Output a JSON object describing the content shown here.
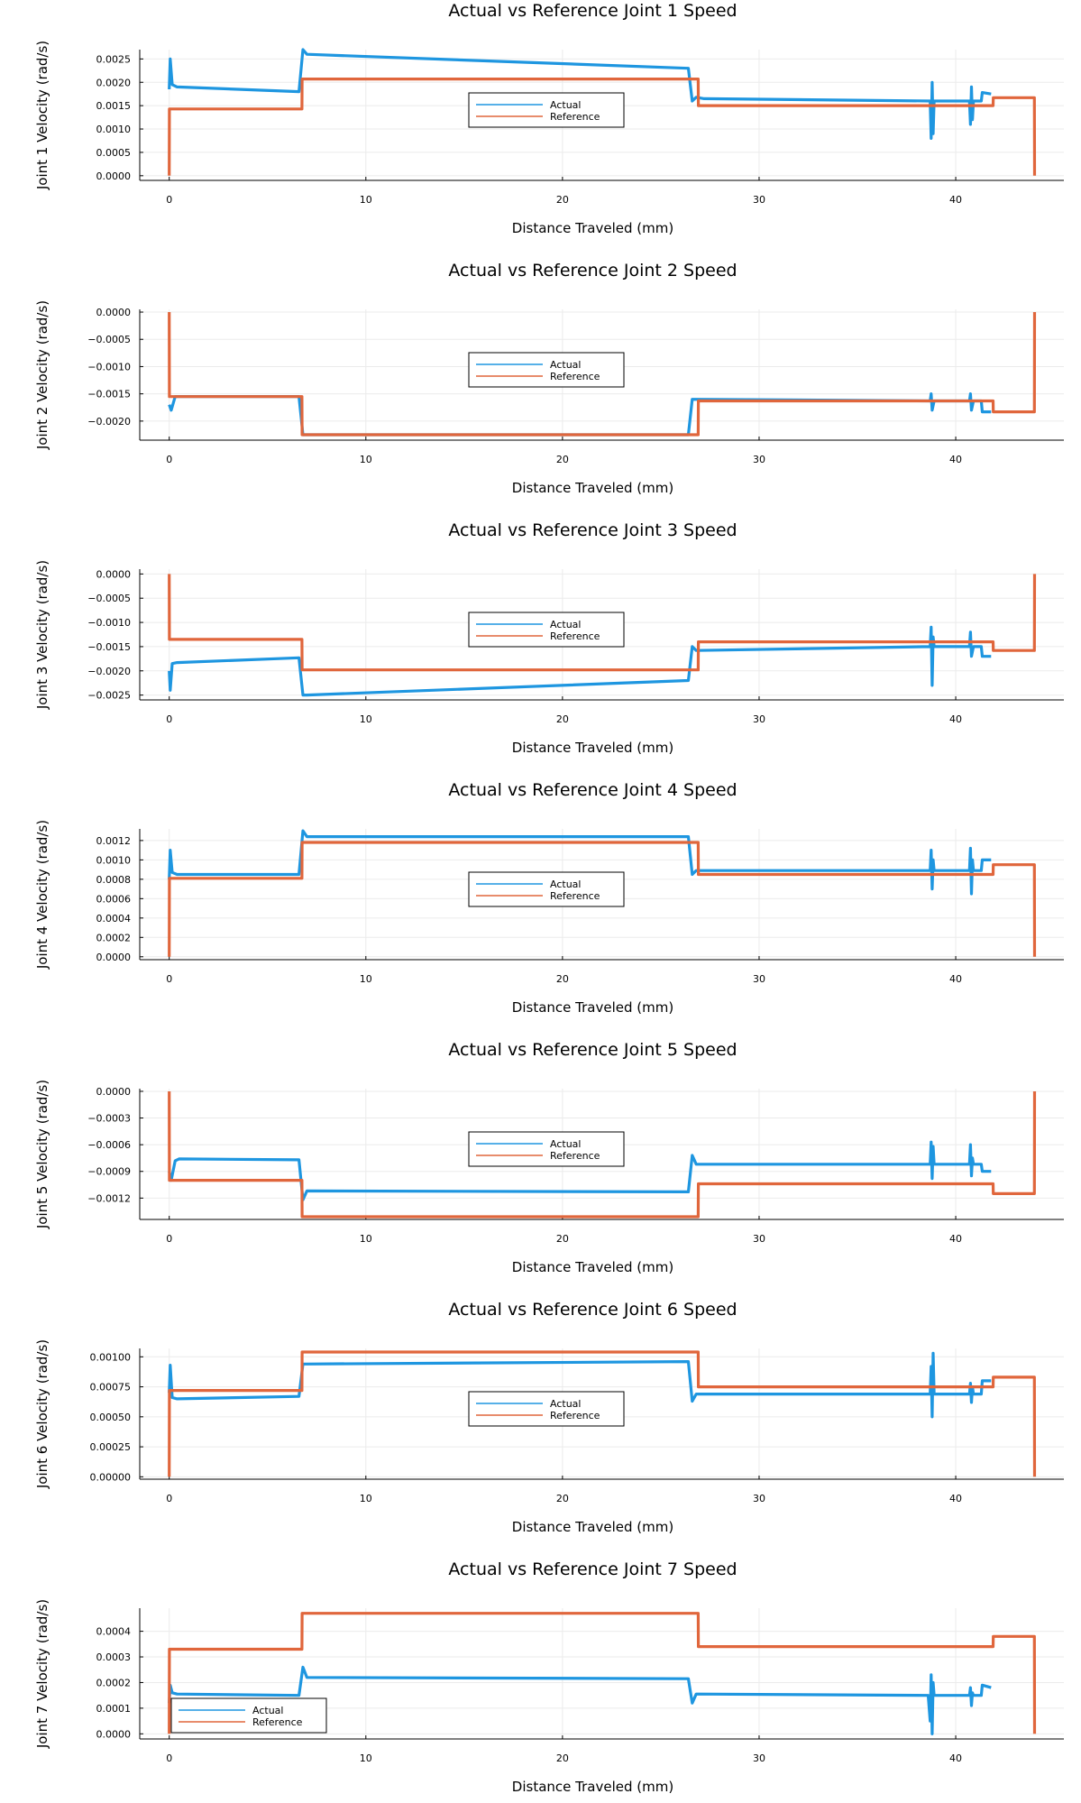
{
  "colors": {
    "actual": "#1e96e0",
    "reference": "#e0663c",
    "axis": "#000000",
    "grid": "#ebebeb"
  },
  "chart_data": [
    {
      "type": "line",
      "title": "Actual vs Reference Joint 1 Speed",
      "xlabel": "Distance Traveled (mm)",
      "ylabel": "Joint 1 Velocity (rad/s)",
      "xlim": [
        -1.5,
        45.5
      ],
      "ylim": [
        -0.0001,
        0.0027
      ],
      "xticks": [
        0,
        10,
        20,
        30,
        40
      ],
      "xtick_labels": [
        "0",
        "10",
        "20",
        "30",
        "40"
      ],
      "yticks": [
        0.0,
        0.0005,
        0.001,
        0.0015,
        0.002,
        0.0025
      ],
      "ytick_labels": [
        "0.0000",
        "0.0005",
        "0.0010",
        "0.0015",
        "0.0020",
        "0.0025"
      ],
      "legend_position": "center",
      "series": [
        {
          "name": "Actual",
          "x": [
            0,
            0.05,
            0.15,
            0.4,
            6.6,
            6.8,
            7.0,
            26.4,
            26.6,
            26.8,
            27.2,
            38.7,
            38.75,
            38.8,
            38.85,
            38.9,
            40.7,
            40.75,
            40.8,
            40.85,
            40.9,
            41.3,
            41.35,
            41.8
          ],
          "y": [
            0.00185,
            0.0025,
            0.00195,
            0.0019,
            0.0018,
            0.0027,
            0.0026,
            0.0023,
            0.0016,
            0.00168,
            0.00165,
            0.0016,
            0.0008,
            0.002,
            0.0009,
            0.0016,
            0.0016,
            0.0011,
            0.0019,
            0.0012,
            0.0016,
            0.0016,
            0.00178,
            0.00175
          ]
        },
        {
          "name": "Reference",
          "x": [
            0,
            0.01,
            6.75,
            6.76,
            26.9,
            26.91,
            41.9,
            41.91,
            44.0,
            44.01
          ],
          "y": [
            0.0,
            0.00143,
            0.00143,
            0.00207,
            0.00207,
            0.0015,
            0.0015,
            0.00167,
            0.00167,
            0.0
          ]
        }
      ]
    },
    {
      "type": "line",
      "title": "Actual vs Reference Joint 2 Speed",
      "xlabel": "Distance Traveled (mm)",
      "ylabel": "Joint 2 Velocity (rad/s)",
      "xlim": [
        -1.5,
        45.5
      ],
      "ylim": [
        -0.00235,
        5e-05
      ],
      "xticks": [
        0,
        10,
        20,
        30,
        40
      ],
      "xtick_labels": [
        "0",
        "10",
        "20",
        "30",
        "40"
      ],
      "yticks": [
        0.0,
        -0.0005,
        -0.001,
        -0.0015,
        -0.002
      ],
      "ytick_labels": [
        "0.0000",
        "−0.0005",
        "−0.0010",
        "−0.0015",
        "−0.0020"
      ],
      "legend_position": "center",
      "series": [
        {
          "name": "Actual",
          "x": [
            0,
            0.1,
            0.3,
            6.6,
            6.8,
            26.4,
            26.6,
            38.7,
            38.75,
            38.8,
            38.9,
            40.7,
            40.75,
            40.8,
            40.9,
            41.3,
            41.35,
            41.8
          ],
          "y": [
            -0.0017,
            -0.0018,
            -0.00155,
            -0.00155,
            -0.00225,
            -0.00225,
            -0.0016,
            -0.00163,
            -0.0015,
            -0.0018,
            -0.00163,
            -0.00163,
            -0.0015,
            -0.0018,
            -0.00163,
            -0.00163,
            -0.00183,
            -0.00183
          ]
        },
        {
          "name": "Reference",
          "x": [
            0,
            0.01,
            6.75,
            6.76,
            26.9,
            26.91,
            41.9,
            41.91,
            44.0,
            44.01
          ],
          "y": [
            0.0,
            -0.00155,
            -0.00155,
            -0.00225,
            -0.00225,
            -0.00163,
            -0.00163,
            -0.00183,
            -0.00183,
            0.0
          ]
        }
      ]
    },
    {
      "type": "line",
      "title": "Actual vs Reference Joint 3 Speed",
      "xlabel": "Distance Traveled (mm)",
      "ylabel": "Joint 3 Velocity (rad/s)",
      "xlim": [
        -1.5,
        45.5
      ],
      "ylim": [
        -0.0026,
        0.0001
      ],
      "xticks": [
        0,
        10,
        20,
        30,
        40
      ],
      "xtick_labels": [
        "0",
        "10",
        "20",
        "30",
        "40"
      ],
      "yticks": [
        0.0,
        -0.0005,
        -0.001,
        -0.0015,
        -0.002,
        -0.0025
      ],
      "ytick_labels": [
        "0.0000",
        "−0.0005",
        "−0.0010",
        "−0.0015",
        "−0.0020",
        "−0.0025"
      ],
      "legend_position": "center",
      "series": [
        {
          "name": "Actual",
          "x": [
            0,
            0.05,
            0.15,
            0.4,
            6.6,
            6.8,
            7.0,
            26.4,
            26.6,
            26.8,
            38.7,
            38.75,
            38.8,
            38.85,
            38.9,
            40.7,
            40.75,
            40.8,
            40.9,
            41.3,
            41.35,
            41.8
          ],
          "y": [
            -0.002,
            -0.0024,
            -0.00185,
            -0.00183,
            -0.00173,
            -0.0025,
            -0.0025,
            -0.0022,
            -0.0015,
            -0.00158,
            -0.0015,
            -0.0011,
            -0.0023,
            -0.0013,
            -0.0015,
            -0.0015,
            -0.0012,
            -0.0017,
            -0.0015,
            -0.0015,
            -0.0017,
            -0.0017
          ]
        },
        {
          "name": "Reference",
          "x": [
            0,
            0.01,
            6.75,
            6.76,
            26.9,
            26.91,
            41.9,
            41.91,
            44.0,
            44.01
          ],
          "y": [
            0.0,
            -0.00135,
            -0.00135,
            -0.00198,
            -0.00198,
            -0.0014,
            -0.0014,
            -0.00158,
            -0.00158,
            0.0
          ]
        }
      ]
    },
    {
      "type": "line",
      "title": "Actual vs Reference Joint 4 Speed",
      "xlabel": "Distance Traveled (mm)",
      "ylabel": "Joint 4 Velocity (rad/s)",
      "xlim": [
        -1.5,
        45.5
      ],
      "ylim": [
        -3e-05,
        0.00132
      ],
      "xticks": [
        0,
        10,
        20,
        30,
        40
      ],
      "xtick_labels": [
        "0",
        "10",
        "20",
        "30",
        "40"
      ],
      "yticks": [
        0.0,
        0.0002,
        0.0004,
        0.0006,
        0.0008,
        0.001,
        0.0012
      ],
      "ytick_labels": [
        "0.0000",
        "0.0002",
        "0.0004",
        "0.0006",
        "0.0008",
        "0.0010",
        "0.0012"
      ],
      "legend_position": "center",
      "series": [
        {
          "name": "Actual",
          "x": [
            0,
            0.05,
            0.15,
            0.4,
            6.6,
            6.8,
            7.0,
            26.4,
            26.6,
            26.8,
            38.7,
            38.75,
            38.8,
            38.85,
            38.9,
            40.7,
            40.75,
            40.8,
            40.85,
            40.9,
            41.3,
            41.35,
            41.8
          ],
          "y": [
            0.0008,
            0.0011,
            0.00087,
            0.00085,
            0.00085,
            0.0013,
            0.00124,
            0.00124,
            0.00085,
            0.00089,
            0.00089,
            0.0011,
            0.0007,
            0.001,
            0.00089,
            0.00089,
            0.00112,
            0.00065,
            0.001,
            0.00089,
            0.00089,
            0.001,
            0.001
          ]
        },
        {
          "name": "Reference",
          "x": [
            0,
            0.01,
            6.75,
            6.76,
            26.9,
            26.91,
            41.9,
            41.91,
            44.0,
            44.01
          ],
          "y": [
            0.0,
            0.00081,
            0.00081,
            0.00118,
            0.00118,
            0.00085,
            0.00085,
            0.00095,
            0.00095,
            0.0
          ]
        }
      ]
    },
    {
      "type": "line",
      "title": "Actual vs Reference Joint 5 Speed",
      "xlabel": "Distance Traveled (mm)",
      "ylabel": "Joint 5 Velocity (rad/s)",
      "xlim": [
        -1.5,
        45.5
      ],
      "ylim": [
        -0.00144,
        3e-05
      ],
      "xticks": [
        0,
        10,
        20,
        30,
        40
      ],
      "xtick_labels": [
        "0",
        "10",
        "20",
        "30",
        "40"
      ],
      "yticks": [
        0.0,
        -0.0003,
        -0.0006,
        -0.0009,
        -0.0012
      ],
      "ytick_labels": [
        "0.0000",
        "−0.0003",
        "−0.0006",
        "−0.0009",
        "−0.0012"
      ],
      "legend_position": "center",
      "series": [
        {
          "name": "Actual",
          "x": [
            0,
            0.1,
            0.3,
            0.5,
            6.6,
            6.8,
            7.0,
            26.4,
            26.6,
            26.8,
            38.7,
            38.75,
            38.8,
            38.85,
            38.9,
            40.7,
            40.75,
            40.8,
            40.85,
            40.9,
            41.3,
            41.35,
            41.8
          ],
          "y": [
            -0.0009,
            -0.001,
            -0.00078,
            -0.00076,
            -0.00077,
            -0.00122,
            -0.00112,
            -0.00113,
            -0.00072,
            -0.00082,
            -0.00082,
            -0.00057,
            -0.00098,
            -0.00062,
            -0.00082,
            -0.00082,
            -0.0006,
            -0.00095,
            -0.00075,
            -0.00082,
            -0.00082,
            -0.0009,
            -0.0009
          ]
        },
        {
          "name": "Reference",
          "x": [
            0,
            0.01,
            6.75,
            6.76,
            26.9,
            26.91,
            41.9,
            41.91,
            44.0,
            44.01
          ],
          "y": [
            0.0,
            -0.001,
            -0.001,
            -0.00141,
            -0.00141,
            -0.00104,
            -0.00104,
            -0.00115,
            -0.00115,
            0.0
          ]
        }
      ]
    },
    {
      "type": "line",
      "title": "Actual vs Reference Joint 6 Speed",
      "xlabel": "Distance Traveled (mm)",
      "ylabel": "Joint 6 Velocity (rad/s)",
      "xlim": [
        -1.5,
        45.5
      ],
      "ylim": [
        -2e-05,
        0.00107
      ],
      "xticks": [
        0,
        10,
        20,
        30,
        40
      ],
      "xtick_labels": [
        "0",
        "10",
        "20",
        "30",
        "40"
      ],
      "yticks": [
        0.0,
        0.00025,
        0.0005,
        0.00075,
        0.001
      ],
      "ytick_labels": [
        "0.00000",
        "0.00025",
        "0.00050",
        "0.00075",
        "0.00100"
      ],
      "legend_position": "center",
      "series": [
        {
          "name": "Actual",
          "x": [
            0,
            0.05,
            0.15,
            0.4,
            6.6,
            6.8,
            7.0,
            26.4,
            26.6,
            26.8,
            38.7,
            38.75,
            38.8,
            38.85,
            38.9,
            40.7,
            40.75,
            40.8,
            40.85,
            40.9,
            41.3,
            41.35,
            41.8
          ],
          "y": [
            0.0007,
            0.00093,
            0.00066,
            0.00065,
            0.00067,
            0.00094,
            0.00094,
            0.00096,
            0.00063,
            0.00069,
            0.00069,
            0.00092,
            0.0005,
            0.00103,
            0.00069,
            0.00069,
            0.00078,
            0.00062,
            0.00075,
            0.00069,
            0.00069,
            0.0008,
            0.0008
          ]
        },
        {
          "name": "Reference",
          "x": [
            0,
            0.01,
            6.75,
            6.76,
            26.9,
            26.91,
            41.9,
            41.91,
            44.0,
            44.01
          ],
          "y": [
            0.0,
            0.00072,
            0.00072,
            0.00104,
            0.00104,
            0.00075,
            0.00075,
            0.00083,
            0.00083,
            0.0
          ]
        }
      ]
    },
    {
      "type": "line",
      "title": "Actual vs Reference Joint 7 Speed",
      "xlabel": "Distance Traveled (mm)",
      "ylabel": "Joint 7 Velocity (rad/s)",
      "xlim": [
        -1.5,
        45.5
      ],
      "ylim": [
        -2e-05,
        0.00049
      ],
      "xticks": [
        0,
        10,
        20,
        30,
        40
      ],
      "xtick_labels": [
        "0",
        "10",
        "20",
        "30",
        "40"
      ],
      "yticks": [
        0.0,
        0.0001,
        0.0002,
        0.0003,
        0.0004
      ],
      "ytick_labels": [
        "0.0000",
        "0.0001",
        "0.0002",
        "0.0003",
        "0.0004"
      ],
      "legend_position": "bottom-left",
      "series": [
        {
          "name": "Actual",
          "x": [
            0,
            0.05,
            0.15,
            0.4,
            6.6,
            6.8,
            7.0,
            26.4,
            26.6,
            26.8,
            38.6,
            38.7,
            38.75,
            38.8,
            38.85,
            38.9,
            40.7,
            40.75,
            40.8,
            40.85,
            40.9,
            41.3,
            41.35,
            41.8
          ],
          "y": [
            0.00012,
            0.00019,
            0.00016,
            0.000155,
            0.00015,
            0.00026,
            0.00022,
            0.000215,
            0.00012,
            0.000155,
            0.00015,
            5e-05,
            0.00023,
            0.0,
            0.0002,
            0.00015,
            0.00015,
            0.00018,
            0.00011,
            0.00016,
            0.00015,
            0.00015,
            0.00019,
            0.00018
          ]
        },
        {
          "name": "Reference",
          "x": [
            0,
            0.01,
            6.75,
            6.76,
            26.9,
            26.91,
            41.9,
            41.91,
            44.0,
            44.01
          ],
          "y": [
            0.0,
            0.00033,
            0.00033,
            0.00047,
            0.00047,
            0.00034,
            0.00034,
            0.00038,
            0.00038,
            0.0
          ]
        }
      ]
    }
  ]
}
